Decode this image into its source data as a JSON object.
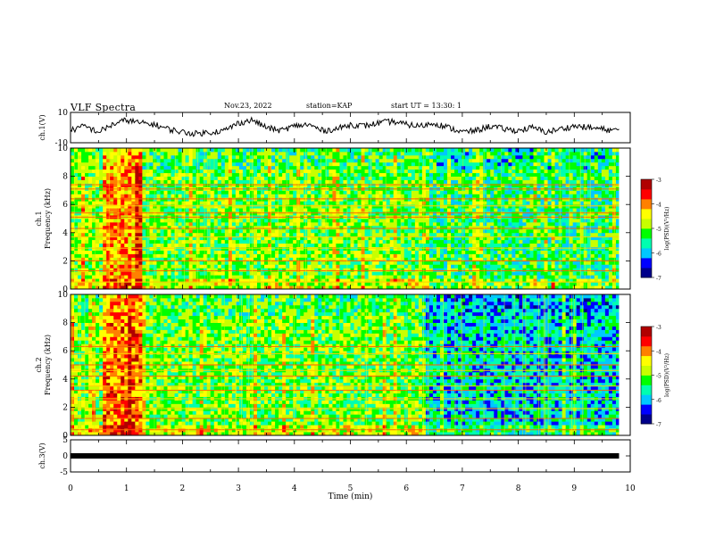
{
  "header": {
    "title": "VLF Spectra",
    "date": "Nov.23, 2022",
    "station": "station=KAP",
    "start": "start UT = 13:30: 1"
  },
  "chart_data": [
    {
      "type": "line",
      "name": "ch1-waveform",
      "ylabel": "ch.1(V)",
      "xlim": [
        0,
        10
      ],
      "ylim": [
        -10,
        10
      ],
      "yticks": [
        "10",
        "-10"
      ],
      "x": [
        0,
        0.25,
        0.5,
        0.75,
        1,
        1.25,
        1.5,
        1.75,
        2,
        2.25,
        2.5,
        2.75,
        3,
        3.25,
        3.5,
        3.75,
        4,
        4.25,
        4.5,
        4.75,
        5,
        5.25,
        5.5,
        5.75,
        6,
        6.25,
        6.5,
        6.75,
        7,
        7.25,
        7.5,
        7.75,
        8,
        8.25,
        8.5,
        8.75,
        9,
        9.25,
        9.5,
        9.75,
        9.8
      ],
      "y": [
        -2,
        1,
        -3,
        2,
        5,
        3,
        2,
        -1,
        -3,
        -4,
        -3,
        -2,
        3,
        5,
        0,
        -2,
        1,
        2,
        -2,
        -1,
        2,
        1,
        3,
        4,
        2,
        1,
        3,
        0,
        -3,
        -2,
        1,
        -1,
        -2,
        0,
        -3,
        -1,
        1,
        0,
        -1,
        -2,
        -1
      ]
    },
    {
      "type": "heatmap",
      "name": "ch1-spectrogram",
      "ylabel": "ch.1 Frequency (kHz)",
      "xlim": [
        0,
        10
      ],
      "ylim": [
        0,
        10
      ],
      "yticks": [
        "0",
        "2",
        "4",
        "6",
        "8",
        "10"
      ],
      "colorbar_label": "log(PSD)(V²/Hz)",
      "colorbar_range": [
        -7,
        -3
      ],
      "colorbar_ticks": [
        "-3",
        "-4",
        "-5",
        "-6",
        "-7"
      ],
      "colormap": [
        "#00008b",
        "#0000ff",
        "#00c8ff",
        "#00ffb0",
        "#00ff00",
        "#c8ff00",
        "#ffff00",
        "#ff8000",
        "#ff0000",
        "#b00000"
      ],
      "segments": [
        {
          "from_min": 0.0,
          "to_min": 0.6,
          "mean_log_psd": -4.9
        },
        {
          "from_min": 0.6,
          "to_min": 1.3,
          "mean_log_psd": -4.1
        },
        {
          "from_min": 1.3,
          "to_min": 6.3,
          "mean_log_psd": -5.1
        },
        {
          "from_min": 6.3,
          "to_min": 9.8,
          "mean_log_psd": -5.4
        }
      ],
      "lines_khz": [
        0.5,
        1.3,
        2.0,
        2.9,
        3.7,
        4.3,
        5.1,
        5.4,
        5.9,
        6.4,
        7.1,
        7.4
      ]
    },
    {
      "type": "heatmap",
      "name": "ch2-spectrogram",
      "ylabel": "ch.2 Frequency (kHz)",
      "xlim": [
        0,
        10
      ],
      "ylim": [
        0,
        10
      ],
      "yticks": [
        "0",
        "2",
        "4",
        "6",
        "8",
        "10"
      ],
      "colorbar_label": "log(PSD)(V²/Hz)",
      "colorbar_range": [
        -7,
        -3
      ],
      "colorbar_ticks": [
        "-3",
        "-4",
        "-5",
        "-6",
        "-7"
      ],
      "segments": [
        {
          "from_min": 0.0,
          "to_min": 0.6,
          "mean_log_psd": -5.0
        },
        {
          "from_min": 0.6,
          "to_min": 1.3,
          "mean_log_psd": -3.9
        },
        {
          "from_min": 1.3,
          "to_min": 6.3,
          "mean_log_psd": -5.1
        },
        {
          "from_min": 6.3,
          "to_min": 9.8,
          "mean_log_psd": -5.8
        }
      ],
      "lines_khz": [
        0.4,
        1.2,
        1.9,
        2.6,
        3.2,
        3.5,
        4.2,
        4.6,
        5.0,
        5.8,
        6.3
      ]
    },
    {
      "type": "line",
      "name": "ch3-waveform",
      "ylabel": "ch.3(V)",
      "xlim": [
        0,
        10
      ],
      "ylim": [
        -5,
        5
      ],
      "yticks": [
        "5",
        "0",
        "-5"
      ],
      "x": [
        0,
        9.8
      ],
      "y": [
        0,
        0
      ]
    }
  ],
  "x_axis": {
    "label": "Time (min)",
    "ticks": [
      "0",
      "1",
      "2",
      "3",
      "4",
      "5",
      "6",
      "7",
      "8",
      "9",
      "10"
    ]
  }
}
